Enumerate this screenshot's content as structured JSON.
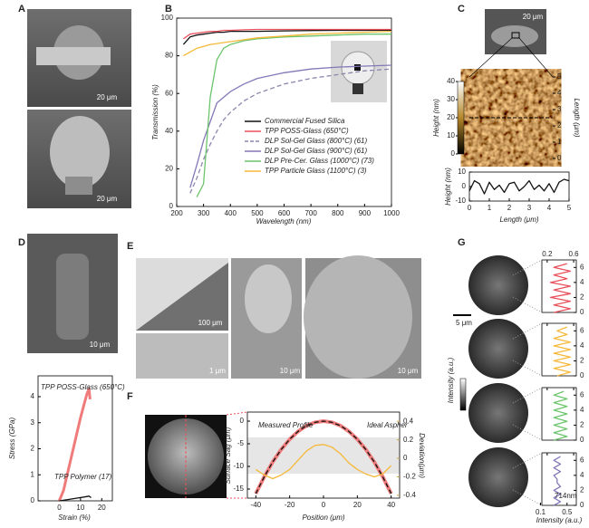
{
  "figure": {
    "panel_labels": [
      "A",
      "B",
      "C",
      "D",
      "E",
      "F",
      "G"
    ],
    "scale_bars": [
      "20 μm",
      "20 μm",
      "20 μm",
      "10 μm",
      "100 μm",
      "1 μm",
      "10 μm",
      "10 μm",
      "5 μm"
    ],
    "g_colorbar_label": "Intensity (a.u.)"
  },
  "chart_data": [
    {
      "type": "line",
      "xlabel": "Wavelength (nm)",
      "ylabel": "Transmission (%)",
      "x": [
        200,
        225,
        250,
        275,
        300,
        325,
        350,
        375,
        400,
        450,
        500,
        600,
        700,
        800,
        900,
        1000
      ],
      "xlim": [
        200,
        1000
      ],
      "xticks": [
        200,
        300,
        400,
        500,
        600,
        700,
        800,
        900,
        1000
      ],
      "ylim": [
        0,
        100
      ],
      "yticks": [
        0,
        20,
        40,
        60,
        80,
        100
      ],
      "legend": "lower right",
      "series": [
        {
          "name": "Commercial Fused Silica",
          "color": "#111111",
          "values": [
            null,
            86,
            90,
            91,
            91.5,
            92,
            92.5,
            92.5,
            93,
            93,
            93,
            93.2,
            93.4,
            93.5,
            93.5,
            93.6
          ]
        },
        {
          "name": "TPP POSS-Glass (650°C)",
          "color": "#e8505b",
          "values": [
            null,
            89,
            91.5,
            92,
            92.5,
            93,
            93,
            93.5,
            93.5,
            93.8,
            94,
            94,
            94,
            94,
            94,
            94
          ]
        },
        {
          "name": "DLP Sol-Gel Glass (800°C) (61)",
          "color": "#8e86ad",
          "dash": true,
          "values": [
            null,
            null,
            7,
            15,
            25,
            33,
            40,
            46,
            50,
            56,
            60,
            65,
            68,
            70,
            72,
            73
          ]
        },
        {
          "name": "DLP Sol-Gel Glass (900°C) (61)",
          "color": "#8577b8",
          "values": [
            null,
            null,
            10,
            22,
            35,
            45,
            55,
            58,
            61,
            65,
            68,
            71,
            73,
            74,
            74.5,
            75
          ]
        },
        {
          "name": "DLP Pre-Cer. Glass (1000°C) (73)",
          "color": "#6cc46c",
          "values": [
            null,
            null,
            null,
            5,
            12,
            58,
            78,
            84,
            86,
            88,
            89,
            90,
            90.5,
            91,
            91.5,
            91.5
          ]
        },
        {
          "name": "TPP Particle Glass (1100°C) (3)",
          "color": "#f5b93a",
          "values": [
            null,
            80,
            82,
            84,
            85,
            86,
            86.5,
            87,
            87.5,
            88.5,
            89.5,
            90.5,
            91.5,
            92,
            92.5,
            93
          ]
        }
      ]
    },
    {
      "type": "heatmap",
      "zlabel": "Height (nm)",
      "zlim": [
        0,
        40
      ],
      "zticks": [
        0,
        10,
        20,
        30,
        40
      ],
      "ylabel": "Length (μm)",
      "ylim": [
        0,
        5
      ],
      "yticks": [
        0,
        1,
        2,
        3,
        4,
        5
      ]
    },
    {
      "type": "line",
      "xlabel": "Length (μm)",
      "ylabel": "Height (nm)",
      "x": [
        0,
        0.25,
        0.5,
        0.75,
        1,
        1.25,
        1.5,
        1.75,
        2,
        2.25,
        2.5,
        2.75,
        3,
        3.25,
        3.5,
        3.75,
        4,
        4.25,
        4.5,
        4.75,
        5
      ],
      "xlim": [
        0,
        5
      ],
      "xticks": [
        0,
        1,
        2,
        3,
        4,
        5
      ],
      "ylim": [
        -10,
        10
      ],
      "yticks": [
        -10,
        0,
        10
      ],
      "series": [
        {
          "color": "#111111",
          "values": [
            -3,
            4,
            2,
            -5,
            3,
            -2,
            1,
            -4,
            2,
            3,
            -3,
            0,
            4,
            -2,
            1,
            -3,
            2,
            -4,
            3,
            5,
            4
          ]
        }
      ]
    },
    {
      "type": "line",
      "xlabel": "Strain (%)",
      "ylabel": "Stress (GPa)",
      "legend": "inline",
      "xlim": [
        -10,
        25
      ],
      "xticks": [
        0,
        10,
        20
      ],
      "ylim": [
        0,
        4.8
      ],
      "yticks": [
        0,
        1,
        2,
        3,
        4
      ],
      "series": [
        {
          "name": "TPP POSS-Glass (650°C)",
          "color": "#ef7b7b",
          "width": 3,
          "x": [
            0,
            2,
            4,
            6,
            8,
            10,
            12,
            13,
            14,
            14.5
          ],
          "values": [
            0,
            0.4,
            1.1,
            1.8,
            2.5,
            3.2,
            3.8,
            4.1,
            4.3,
            3.9
          ]
        },
        {
          "name": "TPP Polymer (17)",
          "color": "#111111",
          "x": [
            0,
            4,
            8,
            12,
            14,
            15
          ],
          "values": [
            0,
            0.05,
            0.1,
            0.15,
            0.18,
            0.12
          ]
        }
      ]
    },
    {
      "type": "line",
      "xlabel": "Position (μm)",
      "ylabel": "Surface Sag (μm)",
      "y2label": "Deviation(μm)",
      "legend": "inline",
      "x": [
        -40,
        -35,
        -30,
        -25,
        -20,
        -15,
        -10,
        -5,
        0,
        5,
        10,
        15,
        20,
        25,
        30,
        35,
        40
      ],
      "xlim": [
        -45,
        45
      ],
      "xticks": [
        -40,
        -20,
        0,
        20,
        40
      ],
      "ylim": [
        -17,
        2
      ],
      "yticks": [
        0,
        -5,
        -10,
        -15
      ],
      "y2lim": [
        -0.43,
        0.5
      ],
      "y2ticks": [
        -0.4,
        -0.2,
        0,
        0.2,
        0.4
      ],
      "series": [
        {
          "name": "Measured Profile",
          "color": "#ef7b7b",
          "width": 4,
          "values": [
            -16,
            -12.25,
            -9,
            -6.25,
            -4,
            -2.25,
            -1,
            -0.25,
            0,
            -0.25,
            -1,
            -2.25,
            -4,
            -6.25,
            -9,
            -12.25,
            -16
          ]
        },
        {
          "name": "Ideal Aspher",
          "color": "#111111",
          "dash": true,
          "values": [
            -16,
            -12.25,
            -9,
            -6.25,
            -4,
            -2.25,
            -1,
            -0.25,
            0,
            -0.25,
            -1,
            -2.25,
            -4,
            -6.25,
            -9,
            -12.25,
            -16
          ]
        },
        {
          "color": "#f5b93a",
          "axis": "y2",
          "values": [
            -0.12,
            -0.18,
            -0.22,
            -0.18,
            -0.12,
            -0.02,
            0.08,
            0.14,
            0.15,
            0.12,
            0.05,
            -0.05,
            -0.12,
            -0.17,
            -0.2,
            -0.17,
            -0.08
          ]
        }
      ]
    },
    {
      "type": "profiles",
      "xlabel": "Intensity (a.u.)",
      "annotation": "714nm",
      "y": [
        0,
        0.5,
        1,
        1.5,
        2,
        2.5,
        3,
        3.5,
        4,
        4.5,
        5,
        5.5,
        6,
        6.5
      ],
      "xlim": [
        0.12,
        0.64
      ],
      "xticks": [
        0.2,
        0.6
      ],
      "x2ticks": [
        0.1,
        0.5
      ],
      "ylim": [
        0,
        7
      ],
      "yticks": [
        0,
        2,
        4,
        6
      ],
      "series": [
        {
          "color": "#e8505b",
          "values": [
            0.3,
            0.55,
            0.3,
            0.55,
            0.25,
            0.55,
            0.3,
            0.55,
            0.25,
            0.5,
            0.3,
            0.55,
            0.3,
            0.5
          ]
        },
        {
          "color": "#f5b93a",
          "values": [
            0.35,
            0.55,
            0.3,
            0.55,
            0.3,
            0.55,
            0.3,
            0.55,
            0.3,
            0.55,
            0.3,
            0.5,
            0.35,
            0.5
          ]
        },
        {
          "color": "#6cc46c",
          "values": [
            0.3,
            0.5,
            0.3,
            0.5,
            0.3,
            0.5,
            0.3,
            0.5,
            0.3,
            0.5,
            0.3,
            0.5,
            0.3,
            0.45
          ]
        },
        {
          "color": "#8577b8",
          "values": [
            0.3,
            0.4,
            0.3,
            0.4,
            0.3,
            0.4,
            0.35,
            0.35,
            0.3,
            0.4,
            0.3,
            0.4,
            0.3,
            0.4
          ]
        }
      ]
    }
  ]
}
